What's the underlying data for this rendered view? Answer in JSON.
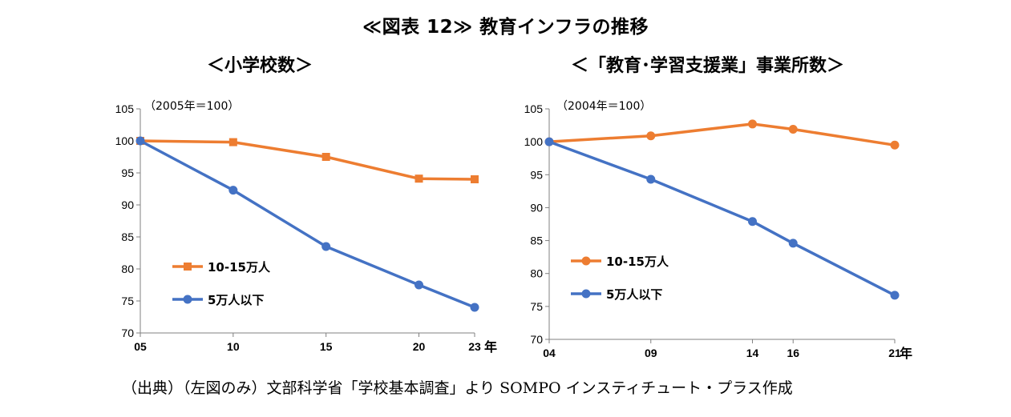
{
  "figure_title": "≪図表 12≫ 教育インフラの推移",
  "source_note": "（出典）（左図のみ）文部科学省「学校基本調査」より SOMPO インスティチュート・プラス作成",
  "colors": {
    "orange": "#ED7D31",
    "blue": "#4472C4",
    "axis": "#808080"
  },
  "chart_data": [
    {
      "type": "line",
      "title": "＜小学校数＞",
      "note": "（2005年＝100）",
      "x_unit": "年",
      "categories": [
        "05",
        "10",
        "15",
        "20",
        "23"
      ],
      "x": [
        2005,
        2010,
        2015,
        2020,
        2023
      ],
      "ylim": [
        70,
        105
      ],
      "yticks": [
        70,
        75,
        80,
        85,
        90,
        95,
        100,
        105
      ],
      "grid": false,
      "legend_position": "lower-left",
      "series": [
        {
          "name": "10-15万人",
          "marker": "square",
          "color": "#ED7D31",
          "values": [
            100,
            99.8,
            97.5,
            94.1,
            94.0
          ]
        },
        {
          "name": "5万人以下",
          "marker": "circle",
          "color": "#4472C4",
          "values": [
            100,
            92.3,
            83.5,
            77.5,
            74.0
          ]
        }
      ]
    },
    {
      "type": "line",
      "title": "＜「教育･学習支援業」事業所数＞",
      "note": "（2004年＝100）",
      "x_unit": "年",
      "categories": [
        "04",
        "09",
        "14",
        "16",
        "21"
      ],
      "x": [
        2004,
        2009,
        2014,
        2016,
        2021
      ],
      "ylim": [
        70,
        105
      ],
      "yticks": [
        70,
        75,
        80,
        85,
        90,
        95,
        100,
        105
      ],
      "grid": false,
      "legend_position": "lower-left",
      "series": [
        {
          "name": "10-15万人",
          "marker": "circle",
          "color": "#ED7D31",
          "values": [
            100,
            100.9,
            102.7,
            101.9,
            99.5
          ]
        },
        {
          "name": "5万人以下",
          "marker": "circle",
          "color": "#4472C4",
          "values": [
            100,
            94.3,
            87.9,
            84.6,
            76.7
          ]
        }
      ]
    }
  ]
}
